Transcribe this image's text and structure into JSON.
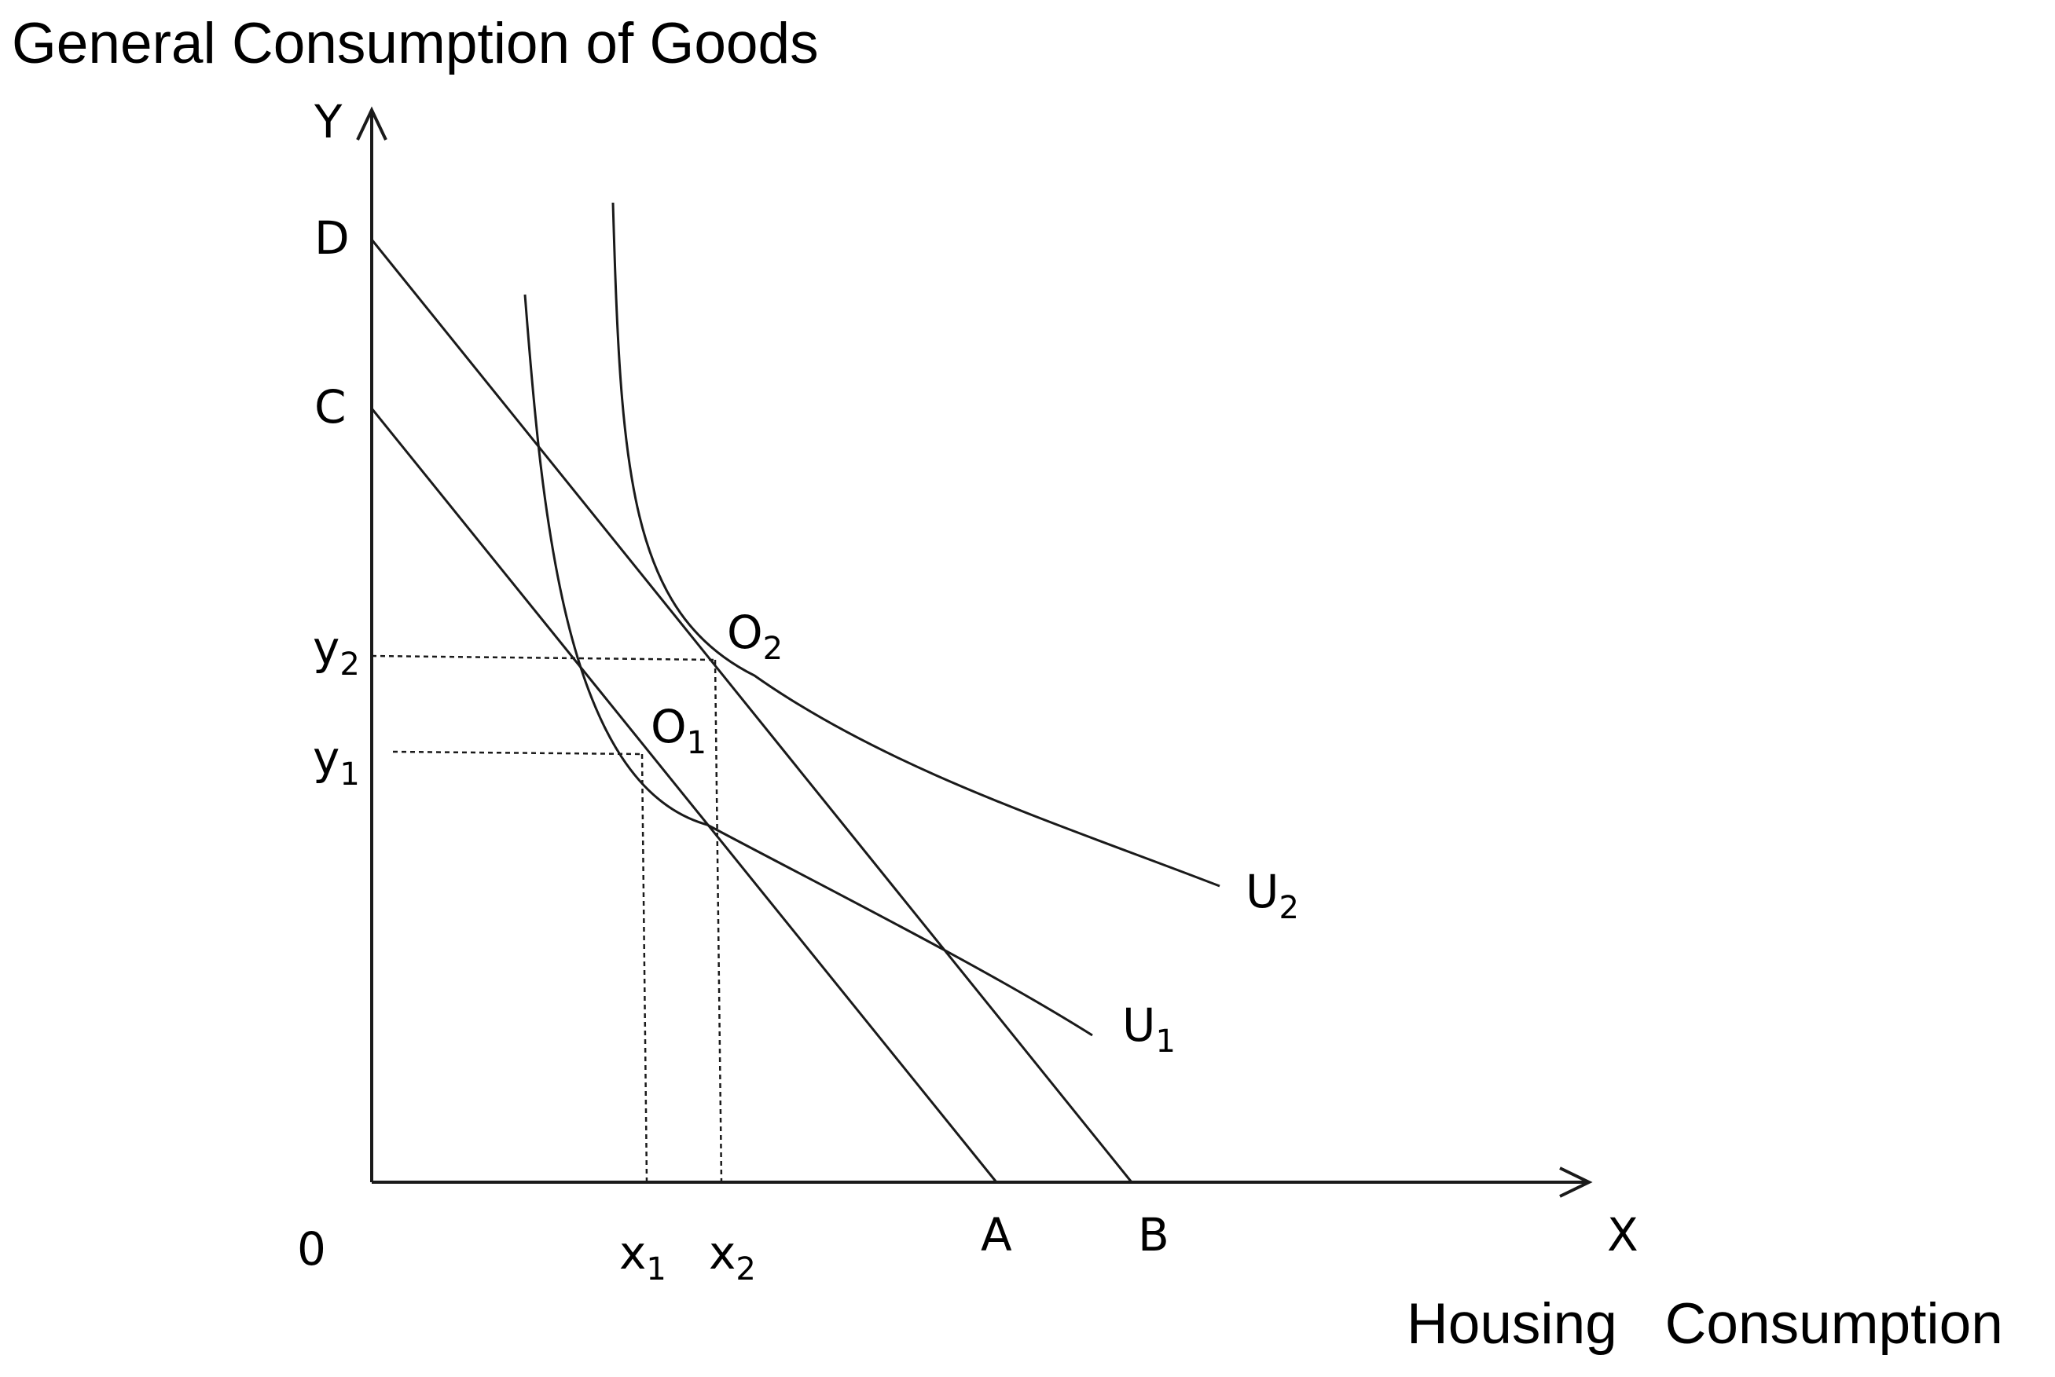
{
  "title": "General Consumption of Goods",
  "x_axis_title": "Housing   Consumption",
  "labels": {
    "y_axis": "Y",
    "x_axis": "X",
    "origin": "0",
    "D": "D",
    "C": "C",
    "A": "A",
    "B": "B",
    "y2": {
      "base": "y",
      "sub": "2"
    },
    "y1": {
      "base": "y",
      "sub": "1"
    },
    "x1": {
      "base": "x",
      "sub": "1"
    },
    "x2": {
      "base": "x",
      "sub": "2"
    },
    "O1": {
      "base": "O",
      "sub": "1"
    },
    "O2": {
      "base": "O",
      "sub": "2"
    },
    "U1": {
      "base": "U",
      "sub": "1"
    },
    "U2": {
      "base": "U",
      "sub": "2"
    }
  }
}
